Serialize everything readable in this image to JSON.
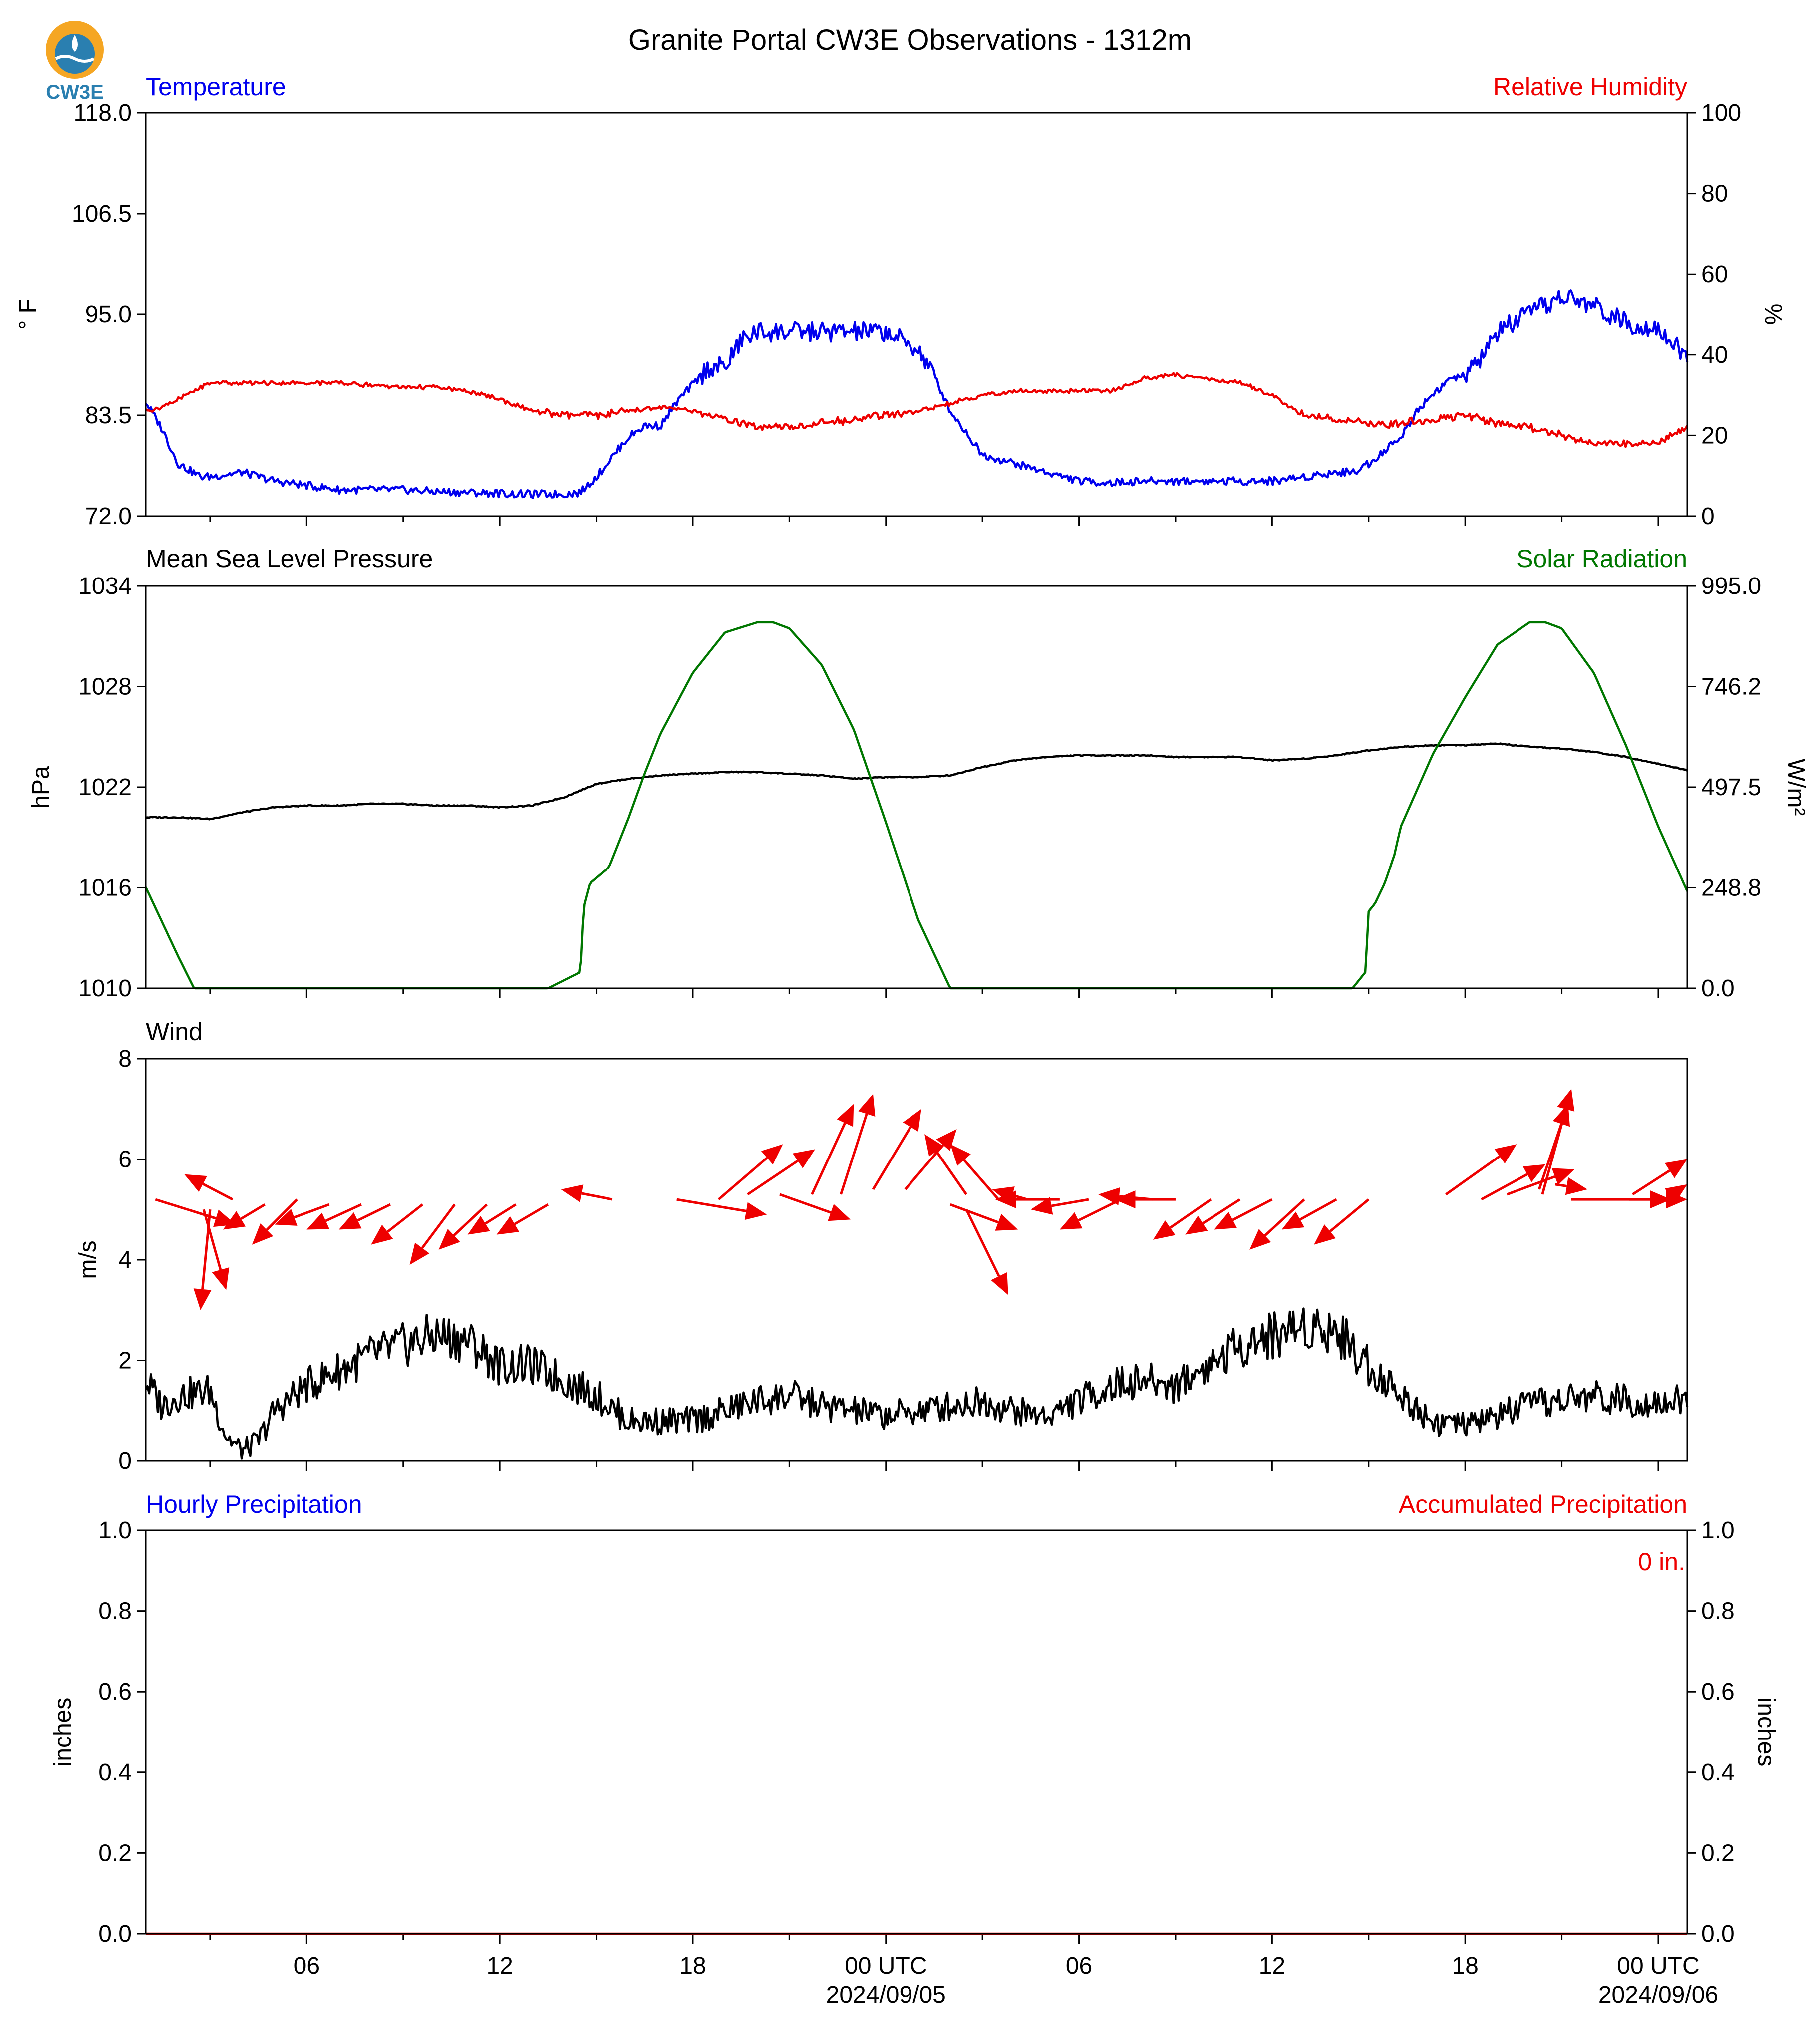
{
  "title": "Granite Portal CW3E Observations - 1312m",
  "logo": {
    "text": "CW3E",
    "icon": "cw3e-drop-logo"
  },
  "colors": {
    "blue": "#0000ee",
    "red": "#ee0000",
    "green": "#007700",
    "black": "#000000"
  },
  "x_axis": {
    "start_hour": 1,
    "end_hour": 48.9,
    "ticks": [
      {
        "hour": 6,
        "label": "06",
        "sub": ""
      },
      {
        "hour": 12,
        "label": "12",
        "sub": ""
      },
      {
        "hour": 18,
        "label": "18",
        "sub": ""
      },
      {
        "hour": 24,
        "label": "00 UTC",
        "sub": "2024/09/05"
      },
      {
        "hour": 30,
        "label": "06",
        "sub": ""
      },
      {
        "hour": 36,
        "label": "12",
        "sub": ""
      },
      {
        "hour": 42,
        "label": "18",
        "sub": ""
      },
      {
        "hour": 48,
        "label": "00 UTC",
        "sub": "2024/09/06"
      }
    ],
    "minor_hours": [
      3,
      9,
      15,
      21,
      27,
      33,
      39,
      45
    ]
  },
  "panels": {
    "temp": {
      "left_title": "Temperature",
      "right_title": "Relative Humidity",
      "left_ylabel": "° F",
      "right_ylabel": "%",
      "left_ticks": [
        "72.0",
        "83.5",
        "95.0",
        "106.5",
        "118.0"
      ],
      "right_ticks": [
        "0",
        "20",
        "40",
        "60",
        "80",
        "100"
      ]
    },
    "pressure": {
      "left_title": "Mean Sea Level Pressure",
      "right_title": "Solar Radiation",
      "left_ylabel": "hPa",
      "right_ylabel": "W/m²",
      "left_ticks": [
        "1010",
        "1016",
        "1022",
        "1028",
        "1034"
      ],
      "right_ticks": [
        "0.0",
        "248.8",
        "497.5",
        "746.2",
        "995.0"
      ]
    },
    "wind": {
      "left_title": "Wind",
      "left_ylabel": "m/s",
      "left_ticks": [
        "0",
        "2",
        "4",
        "6",
        "8"
      ]
    },
    "precip": {
      "left_title": "Hourly Precipitation",
      "right_title": "Accumulated Precipitation",
      "left_ylabel": "inches",
      "right_ylabel": "inches",
      "left_ticks": [
        "0.0",
        "0.2",
        "0.4",
        "0.6",
        "0.8",
        "1.0"
      ],
      "right_ticks": [
        "0.0",
        "0.2",
        "0.4",
        "0.6",
        "0.8",
        "1.0"
      ],
      "total_label": "0 in."
    }
  },
  "chart_data": [
    {
      "type": "line",
      "panel": "temp",
      "series": [
        {
          "axis": "left",
          "color": "#0000ee",
          "ylim": [
            72,
            118
          ],
          "x": [
            1,
            1.5,
            2,
            2.7,
            3,
            4,
            5,
            6,
            7,
            8,
            9,
            10,
            11,
            12,
            12.5,
            13,
            14,
            14.5,
            15,
            16,
            16.5,
            17,
            17.5,
            18,
            18.5,
            19,
            19.5,
            20,
            21,
            22,
            23,
            24,
            25,
            25.5,
            26,
            27,
            28,
            29,
            30,
            31,
            32,
            33,
            34,
            35,
            36,
            37,
            38,
            38.5,
            39,
            40,
            40.5,
            41,
            41.5,
            42,
            42.5,
            43,
            44,
            45,
            46,
            47,
            48,
            48.9
          ],
          "y": [
            85,
            82,
            78,
            76.5,
            76.5,
            77,
            76,
            75.5,
            75,
            75,
            75,
            74.8,
            74.7,
            74.6,
            74.5,
            74.5,
            74.5,
            74.7,
            76.5,
            81,
            82.3,
            82.3,
            85,
            87,
            89,
            89,
            92,
            93,
            93,
            93,
            93,
            93,
            91,
            88,
            84,
            79,
            78,
            77,
            76,
            75.8,
            76,
            76,
            76,
            76,
            76,
            76.5,
            77,
            77,
            78,
            81,
            84,
            86,
            87.5,
            88,
            90,
            93,
            95,
            97,
            96,
            94,
            93.5,
            90
          ]
        },
        {
          "axis": "right",
          "color": "#ee0000",
          "ylim": [
            0,
            100
          ],
          "x": [
            1,
            1.5,
            2,
            3,
            4,
            5,
            6,
            7,
            8,
            9,
            10,
            11,
            12,
            13,
            14,
            15,
            16,
            17,
            18,
            19,
            20,
            21,
            22,
            23,
            24,
            25,
            26,
            27,
            28,
            29,
            30,
            31,
            32,
            33,
            34,
            35,
            36,
            37,
            38,
            39,
            40,
            41,
            42,
            43,
            44,
            45,
            46,
            47,
            48,
            48.9
          ],
          "y": [
            26,
            27,
            29,
            33,
            33,
            33,
            33,
            33,
            32.5,
            32,
            32,
            31,
            29,
            26,
            25,
            25,
            26,
            27,
            26,
            24,
            22,
            22,
            23,
            24,
            25,
            26,
            28,
            30,
            31,
            31,
            31,
            31,
            34,
            35,
            34,
            33,
            30,
            25,
            24,
            23,
            23,
            24,
            25,
            23,
            22,
            20,
            18,
            18,
            18,
            22
          ]
        }
      ]
    },
    {
      "type": "line",
      "panel": "pressure",
      "series": [
        {
          "axis": "left",
          "color": "#000000",
          "ylim": [
            1010,
            1034
          ],
          "x": [
            1,
            2,
            3,
            4,
            5,
            6,
            7,
            8,
            9,
            10,
            11,
            12,
            13,
            14,
            15,
            16,
            17,
            18,
            19,
            20,
            21,
            22,
            23,
            24,
            25,
            26,
            27,
            28,
            29,
            30,
            31,
            32,
            33,
            34,
            35,
            36,
            37,
            38,
            39,
            40,
            41,
            42,
            43,
            44,
            45,
            46,
            47,
            48,
            48.9
          ],
          "y": [
            1020.2,
            1020.2,
            1020.1,
            1020.5,
            1020.8,
            1020.9,
            1020.9,
            1021,
            1021,
            1020.9,
            1020.9,
            1020.8,
            1020.9,
            1021.4,
            1022.2,
            1022.5,
            1022.7,
            1022.8,
            1022.9,
            1022.9,
            1022.8,
            1022.7,
            1022.5,
            1022.6,
            1022.6,
            1022.7,
            1023.2,
            1023.6,
            1023.8,
            1023.9,
            1023.9,
            1023.9,
            1023.8,
            1023.8,
            1023.8,
            1023.6,
            1023.7,
            1023.9,
            1024.2,
            1024.4,
            1024.5,
            1024.5,
            1024.6,
            1024.4,
            1024.3,
            1024.1,
            1023.8,
            1023.4,
            1023.0
          ]
        },
        {
          "axis": "right",
          "color": "#007700",
          "ylim": [
            0,
            995
          ],
          "x": [
            1,
            2,
            2.5,
            3,
            13.5,
            14.5,
            14.6,
            14.8,
            15.4,
            15.5,
            16,
            16.5,
            17,
            18,
            19,
            20,
            20.5,
            21,
            22,
            23,
            24,
            25,
            26,
            27,
            38.5,
            38.9,
            39,
            39.2,
            39.5,
            39.8,
            40,
            41,
            42,
            43,
            44,
            44.5,
            45,
            46,
            47,
            48,
            48.9
          ],
          "y": [
            250,
            80,
            0,
            0,
            0,
            40,
            200,
            260,
            300,
            320,
            420,
            530,
            630,
            780,
            880,
            905,
            905,
            890,
            800,
            640,
            410,
            170,
            0,
            0,
            0,
            40,
            190,
            210,
            260,
            330,
            400,
            580,
            720,
            850,
            905,
            905,
            890,
            780,
            600,
            400,
            240
          ]
        }
      ]
    },
    {
      "type": "line",
      "panel": "wind",
      "series": [
        {
          "axis": "left",
          "color": "#000000",
          "ylim": [
            0,
            8
          ],
          "x": [
            1,
            1.5,
            2,
            3,
            3.5,
            4,
            4.5,
            5,
            6,
            7,
            8,
            9,
            10,
            11,
            12,
            13,
            14,
            15,
            16,
            17,
            18,
            19,
            20,
            21,
            22,
            23,
            24,
            25,
            26,
            27,
            28,
            29,
            30,
            31,
            32,
            33,
            34,
            35,
            36,
            37,
            38,
            39,
            40,
            41,
            42,
            43,
            44,
            45,
            46,
            47,
            48,
            48.9
          ],
          "y": [
            1.6,
            1.1,
            1.3,
            1.4,
            0.5,
            0.2,
            0.4,
            1.0,
            1.5,
            1.8,
            2.1,
            2.3,
            2.5,
            2.4,
            1.9,
            1.9,
            1.6,
            1.3,
            0.8,
            0.8,
            0.8,
            1.0,
            1.2,
            1.3,
            1.1,
            1.0,
            0.9,
            1.0,
            1.1,
            1.2,
            1.0,
            0.9,
            1.2,
            1.5,
            1.6,
            1.5,
            1.9,
            2.3,
            2.5,
            2.7,
            2.6,
            1.9,
            1.3,
            0.8,
            0.7,
            0.9,
            1.1,
            1.2,
            1.3,
            1.2,
            1.2,
            1.2
          ]
        }
      ],
      "arrows": [
        {
          "x0": 1.3,
          "y0": 5.2,
          "x1": 3.8,
          "y1": 4.7
        },
        {
          "x0": 3.7,
          "y0": 5.2,
          "x1": 2.2,
          "y1": 5.7
        },
        {
          "x0": 2.8,
          "y0": 5.0,
          "x1": 3.5,
          "y1": 3.4
        },
        {
          "x0": 3.0,
          "y0": 5.0,
          "x1": 2.7,
          "y1": 3.0
        },
        {
          "x0": 4.7,
          "y0": 5.1,
          "x1": 3.4,
          "y1": 4.6
        },
        {
          "x0": 5.7,
          "y0": 5.2,
          "x1": 4.3,
          "y1": 4.3
        },
        {
          "x0": 6.7,
          "y0": 5.1,
          "x1": 5.0,
          "y1": 4.7
        },
        {
          "x0": 7.7,
          "y0": 5.1,
          "x1": 6.0,
          "y1": 4.6
        },
        {
          "x0": 8.6,
          "y0": 5.1,
          "x1": 7.0,
          "y1": 4.6
        },
        {
          "x0": 9.6,
          "y0": 5.1,
          "x1": 8.0,
          "y1": 4.3
        },
        {
          "x0": 10.6,
          "y0": 5.1,
          "x1": 9.2,
          "y1": 3.9
        },
        {
          "x0": 11.6,
          "y0": 5.1,
          "x1": 10.1,
          "y1": 4.2
        },
        {
          "x0": 12.5,
          "y0": 5.1,
          "x1": 11.0,
          "y1": 4.5
        },
        {
          "x0": 13.5,
          "y0": 5.1,
          "x1": 11.9,
          "y1": 4.5
        },
        {
          "x0": 15.5,
          "y0": 5.2,
          "x1": 13.9,
          "y1": 5.4
        },
        {
          "x0": 17.5,
          "y0": 5.2,
          "x1": 20.3,
          "y1": 4.9
        },
        {
          "x0": 18.8,
          "y0": 5.2,
          "x1": 20.8,
          "y1": 6.3
        },
        {
          "x0": 19.7,
          "y0": 5.3,
          "x1": 21.8,
          "y1": 6.2
        },
        {
          "x0": 20.7,
          "y0": 5.3,
          "x1": 22.9,
          "y1": 4.8
        },
        {
          "x0": 21.7,
          "y0": 5.3,
          "x1": 23.0,
          "y1": 7.1
        },
        {
          "x0": 22.6,
          "y0": 5.3,
          "x1": 23.6,
          "y1": 7.3
        },
        {
          "x0": 23.6,
          "y0": 5.4,
          "x1": 25.1,
          "y1": 7.0
        },
        {
          "x0": 24.6,
          "y0": 5.4,
          "x1": 26.2,
          "y1": 6.6
        },
        {
          "x0": 26.5,
          "y0": 5.3,
          "x1": 25.2,
          "y1": 6.5
        },
        {
          "x0": 27.5,
          "y0": 5.2,
          "x1": 26.0,
          "y1": 6.3
        },
        {
          "x0": 28.4,
          "y0": 5.2,
          "x1": 27.3,
          "y1": 5.4
        },
        {
          "x0": 29.4,
          "y0": 5.2,
          "x1": 27.4,
          "y1": 5.2
        },
        {
          "x0": 30.3,
          "y0": 5.2,
          "x1": 28.5,
          "y1": 5.0
        },
        {
          "x0": 26.0,
          "y0": 5.1,
          "x1": 28.1,
          "y1": 4.6
        },
        {
          "x0": 26.5,
          "y0": 5.0,
          "x1": 27.8,
          "y1": 3.3
        },
        {
          "x0": 31.3,
          "y0": 5.2,
          "x1": 29.4,
          "y1": 4.6
        },
        {
          "x0": 32.3,
          "y0": 5.2,
          "x1": 30.6,
          "y1": 5.3
        },
        {
          "x0": 33.0,
          "y0": 5.2,
          "x1": 31.1,
          "y1": 5.2
        },
        {
          "x0": 34.1,
          "y0": 5.2,
          "x1": 32.3,
          "y1": 4.4
        },
        {
          "x0": 35.0,
          "y0": 5.2,
          "x1": 33.3,
          "y1": 4.5
        },
        {
          "x0": 36.0,
          "y0": 5.2,
          "x1": 34.2,
          "y1": 4.6
        },
        {
          "x0": 37.0,
          "y0": 5.2,
          "x1": 35.3,
          "y1": 4.2
        },
        {
          "x0": 38.0,
          "y0": 5.2,
          "x1": 36.3,
          "y1": 4.6
        },
        {
          "x0": 39.0,
          "y0": 5.2,
          "x1": 37.3,
          "y1": 4.3
        },
        {
          "x0": 41.4,
          "y0": 5.3,
          "x1": 43.6,
          "y1": 6.3
        },
        {
          "x0": 42.5,
          "y0": 5.2,
          "x1": 44.5,
          "y1": 5.9
        },
        {
          "x0": 43.3,
          "y0": 5.3,
          "x1": 45.4,
          "y1": 5.8
        },
        {
          "x0": 44.3,
          "y0": 5.4,
          "x1": 45.2,
          "y1": 7.1
        },
        {
          "x0": 44.4,
          "y0": 5.3,
          "x1": 45.3,
          "y1": 7.4
        },
        {
          "x0": 44.8,
          "y0": 5.5,
          "x1": 45.8,
          "y1": 5.4
        },
        {
          "x0": 45.3,
          "y0": 5.2,
          "x1": 48.4,
          "y1": 5.2
        },
        {
          "x0": 47.1,
          "y0": 5.2,
          "x1": 48.9,
          "y1": 5.2
        },
        {
          "x0": 47.2,
          "y0": 5.3,
          "x1": 48.9,
          "y1": 6.0
        },
        {
          "x0": 48.2,
          "y0": 5.2,
          "x1": 48.9,
          "y1": 5.5
        }
      ]
    },
    {
      "type": "line",
      "panel": "precip",
      "series": [
        {
          "axis": "right",
          "color": "#ee0000",
          "ylim": [
            0,
            1
          ],
          "x": [
            1,
            48.9
          ],
          "y": [
            0,
            0
          ]
        }
      ]
    }
  ]
}
